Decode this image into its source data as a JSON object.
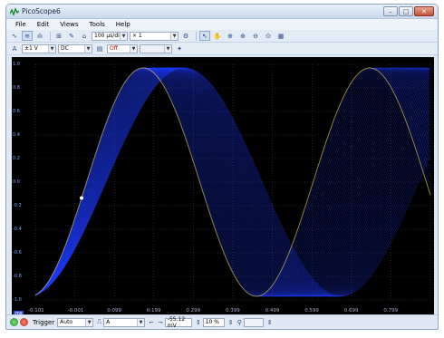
{
  "window": {
    "title": "PicoScope6"
  },
  "menu": [
    "File",
    "Edit",
    "Views",
    "Tools",
    "Help"
  ],
  "toolbar1": {
    "timebase": "100 µs/div",
    "multiplier": "× 1"
  },
  "toolbar2": {
    "channel_label": "A",
    "range": "±1 V",
    "coupling": "DC",
    "filter": "Off"
  },
  "scope": {
    "y_ticks": [
      "1.0",
      "0.8",
      "0.6",
      "0.4",
      "0.2",
      "0.0",
      "-0.2",
      "-0.4",
      "-0.6",
      "-0.8",
      "-1.0"
    ],
    "x_ticks": [
      "-0.101",
      "-0.001",
      "0.099",
      "0.199",
      "0.299",
      "0.399",
      "0.499",
      "0.599",
      "0.699",
      "0.799"
    ],
    "unit_badge": "ms",
    "colors": {
      "trace": "#1f3cff",
      "highlight": "#ffe24a",
      "grid": "#3a3a3a"
    }
  },
  "status": {
    "trigger_label": "Trigger",
    "trigger_mode": "Auto",
    "trigger_source": "A",
    "trigger_level": "-55.12 mV",
    "pre_trigger": "10 %"
  }
}
